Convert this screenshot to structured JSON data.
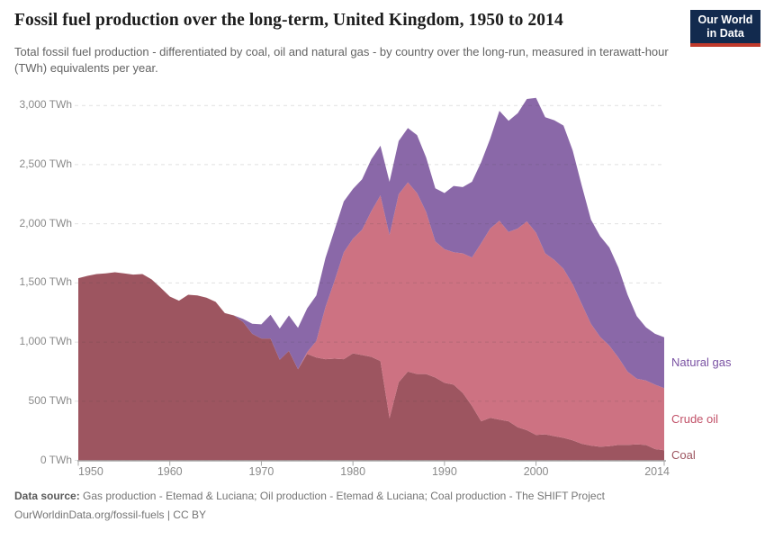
{
  "header": {
    "title": "Fossil fuel production over the long-term, United Kingdom, 1950 to 2014",
    "subtitle": "Total fossil fuel production - differentiated by coal, oil and natural gas - by country over the long-run, measured in terawatt-hour (TWh) equivalents per year.",
    "logo": {
      "line1": "Our World",
      "line2": "in Data",
      "bg_color": "#122a4e",
      "bar_color": "#c03a2c"
    }
  },
  "chart_data": {
    "type": "area",
    "stacked": true,
    "title": "Fossil fuel production over the long-term, United Kingdom, 1950 to 2014",
    "xlabel": "",
    "ylabel": "TWh",
    "ylim": [
      0,
      3000
    ],
    "ytick_step": 500,
    "grid": true,
    "legend_position": "right",
    "x": [
      1950,
      1951,
      1952,
      1953,
      1954,
      1955,
      1956,
      1957,
      1958,
      1959,
      1960,
      1961,
      1962,
      1963,
      1964,
      1965,
      1966,
      1967,
      1968,
      1969,
      1970,
      1971,
      1972,
      1973,
      1974,
      1975,
      1976,
      1977,
      1978,
      1979,
      1980,
      1981,
      1982,
      1983,
      1984,
      1985,
      1986,
      1987,
      1988,
      1989,
      1990,
      1991,
      1992,
      1993,
      1994,
      1995,
      1996,
      1997,
      1998,
      1999,
      2000,
      2001,
      2002,
      2003,
      2004,
      2005,
      2006,
      2007,
      2008,
      2009,
      2010,
      2011,
      2012,
      2013,
      2014
    ],
    "series": [
      {
        "name": "Coal",
        "color": "#9d5560",
        "values": [
          1540,
          1560,
          1575,
          1580,
          1590,
          1580,
          1570,
          1575,
          1530,
          1460,
          1385,
          1350,
          1400,
          1395,
          1375,
          1340,
          1245,
          1225,
          1170,
          1070,
          1030,
          1030,
          850,
          925,
          770,
          900,
          870,
          855,
          860,
          855,
          905,
          890,
          875,
          840,
          355,
          660,
          750,
          730,
          730,
          700,
          655,
          640,
          570,
          460,
          330,
          360,
          345,
          330,
          280,
          255,
          215,
          220,
          205,
          190,
          170,
          140,
          125,
          115,
          120,
          130,
          130,
          135,
          130,
          95,
          85
        ]
      },
      {
        "name": "Crude oil",
        "color": "#cd7282",
        "values": [
          0,
          0,
          0,
          0,
          0,
          0,
          0,
          0,
          0,
          0,
          0,
          0,
          0,
          0,
          0,
          0,
          0,
          0,
          0,
          0,
          0,
          0,
          0,
          0,
          0,
          15,
          140,
          440,
          660,
          905,
          970,
          1060,
          1230,
          1400,
          1550,
          1590,
          1600,
          1530,
          1370,
          1150,
          1130,
          1120,
          1180,
          1255,
          1505,
          1600,
          1680,
          1600,
          1680,
          1765,
          1710,
          1530,
          1490,
          1430,
          1320,
          1180,
          1030,
          930,
          850,
          740,
          620,
          555,
          545,
          545,
          525
        ]
      },
      {
        "name": "Natural gas",
        "color": "#8a68a8",
        "values": [
          0,
          0,
          0,
          0,
          0,
          0,
          0,
          0,
          0,
          0,
          0,
          0,
          0,
          0,
          0,
          0,
          0,
          0,
          25,
          85,
          120,
          200,
          265,
          300,
          350,
          370,
          385,
          415,
          430,
          430,
          420,
          425,
          440,
          420,
          450,
          450,
          460,
          490,
          460,
          450,
          475,
          560,
          560,
          640,
          685,
          760,
          930,
          940,
          975,
          1035,
          1140,
          1150,
          1180,
          1210,
          1130,
          1000,
          880,
          850,
          830,
          760,
          650,
          530,
          450,
          430,
          430
        ]
      }
    ],
    "y_tick_labels": [
      "0 TWh",
      "500 TWh",
      "1,000 TWh",
      "1,500 TWh",
      "2,000 TWh",
      "2,500 TWh",
      "3,000 TWh"
    ],
    "x_tick_labels": [
      "1950",
      "1960",
      "1970",
      "1980",
      "1990",
      "2000",
      "2014"
    ],
    "x_tick_years": [
      1950,
      1960,
      1970,
      1980,
      1990,
      2000,
      2014
    ],
    "legend": [
      {
        "label": "Natural gas",
        "color": "#7a52a3",
        "series_index": 2
      },
      {
        "label": "Crude oil",
        "color": "#c25269",
        "series_index": 1
      },
      {
        "label": "Coal",
        "color": "#9d5560",
        "series_index": 0
      }
    ]
  },
  "footer": {
    "source_label": "Data source:",
    "sources": "Gas production - Etemad & Luciana; Oil production - Etemad & Luciana; Coal production - The SHIFT Project",
    "link_line": "OurWorldinData.org/fossil-fuels | CC BY"
  }
}
